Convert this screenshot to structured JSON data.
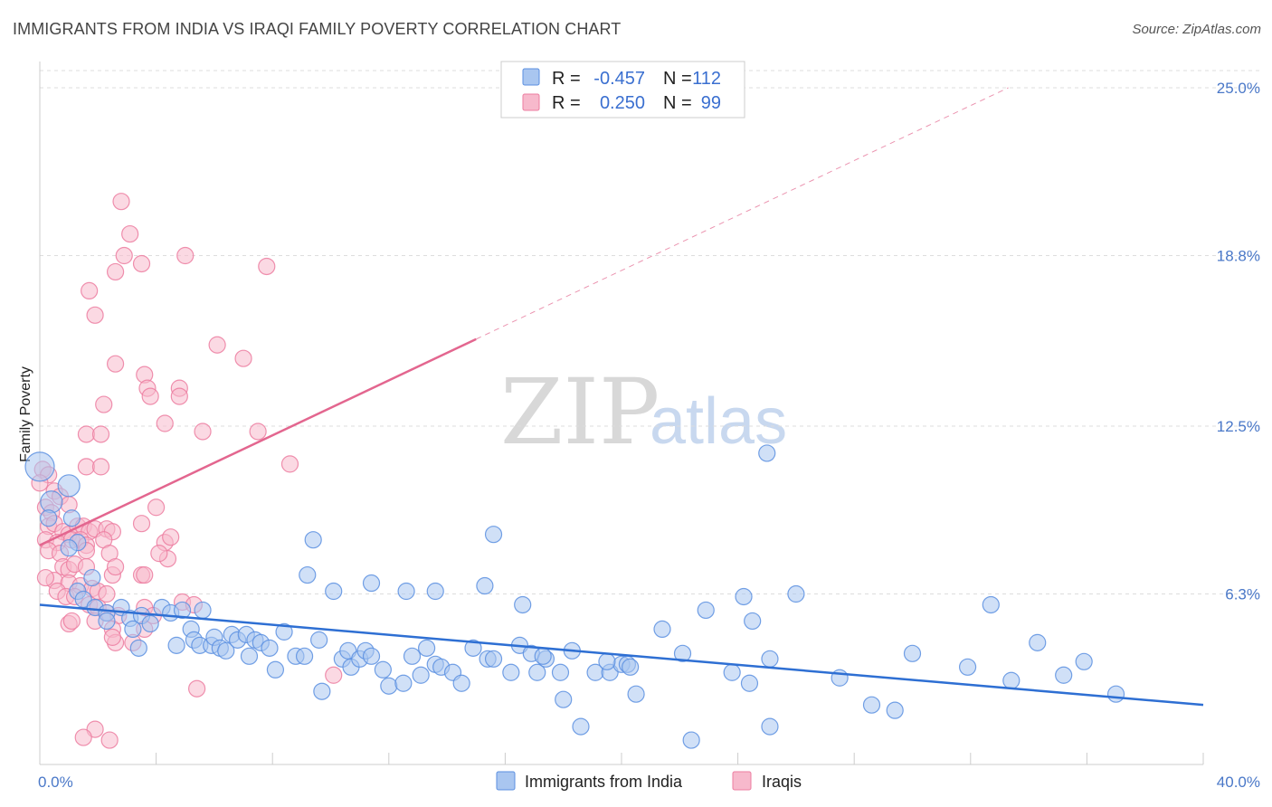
{
  "title": "IMMIGRANTS FROM INDIA VS IRAQI FAMILY POVERTY CORRELATION CHART",
  "source": "Source: ZipAtlas.com",
  "watermark": {
    "zip": "ZIP",
    "atlas": "atlas"
  },
  "colors": {
    "blue": "#5b8fe0",
    "blue_fill": "#a9c6f0",
    "blue_line": "#2e6fd3",
    "pink": "#ec7da0",
    "pink_fill": "#f7b9cc",
    "pink_line": "#e3668f",
    "axis_tick_text": "#4a78c8",
    "grid": "#dddddd"
  },
  "legend": {
    "rows": [
      {
        "r_label": "R =",
        "r_value": "-0.457",
        "n_label": "N =",
        "n_value": "112",
        "series": "blue"
      },
      {
        "r_label": "R =",
        "r_value": "0.250",
        "n_label": "N =",
        "n_value": "99",
        "series": "pink"
      }
    ]
  },
  "bottom_legend": [
    {
      "label": "Immigrants from India",
      "series": "blue"
    },
    {
      "label": "Iraqis",
      "series": "pink"
    }
  ],
  "chart_data": {
    "type": "scatter",
    "title": "IMMIGRANTS FROM INDIA VS IRAQI FAMILY POVERTY CORRELATION CHART",
    "xlabel": "",
    "ylabel": "Family Poverty",
    "xlim": [
      0,
      40
    ],
    "ylim": [
      0,
      25
    ],
    "x_tick_labels": [
      {
        "value": 0,
        "label": "0.0%"
      },
      {
        "value": 40,
        "label": "40.0%"
      }
    ],
    "y_tick_labels": [
      {
        "value": 6.3,
        "label": "6.3%"
      },
      {
        "value": 12.5,
        "label": "12.5%"
      },
      {
        "value": 18.8,
        "label": "18.8%"
      },
      {
        "value": 25.0,
        "label": "25.0%"
      }
    ],
    "grid": true,
    "series": [
      {
        "name": "Immigrants from India",
        "color": "blue",
        "R": -0.457,
        "N": 112,
        "trend": {
          "x0": 0,
          "y0": 5.9,
          "x1": 40,
          "y1": 2.2,
          "solid_until": 40
        },
        "points": [
          [
            0.0,
            11.0
          ],
          [
            1.0,
            10.3
          ],
          [
            0.4,
            9.7
          ],
          [
            0.3,
            9.1
          ],
          [
            1.1,
            9.1
          ],
          [
            1.3,
            8.2
          ],
          [
            1.0,
            8.0
          ],
          [
            1.8,
            6.9
          ],
          [
            1.3,
            6.4
          ],
          [
            1.5,
            6.1
          ],
          [
            1.9,
            5.8
          ],
          [
            2.3,
            5.6
          ],
          [
            2.8,
            5.8
          ],
          [
            2.3,
            5.3
          ],
          [
            3.1,
            5.4
          ],
          [
            3.2,
            5.0
          ],
          [
            3.5,
            5.5
          ],
          [
            3.8,
            5.2
          ],
          [
            4.2,
            5.8
          ],
          [
            4.5,
            5.6
          ],
          [
            4.9,
            5.7
          ],
          [
            5.6,
            5.7
          ],
          [
            3.4,
            4.3
          ],
          [
            4.7,
            4.4
          ],
          [
            5.2,
            5.0
          ],
          [
            5.3,
            4.6
          ],
          [
            5.5,
            4.4
          ],
          [
            5.9,
            4.4
          ],
          [
            6.0,
            4.7
          ],
          [
            6.2,
            4.3
          ],
          [
            6.4,
            4.2
          ],
          [
            6.6,
            4.8
          ],
          [
            6.8,
            4.6
          ],
          [
            7.1,
            4.8
          ],
          [
            7.2,
            4.0
          ],
          [
            7.4,
            4.6
          ],
          [
            7.6,
            4.5
          ],
          [
            7.9,
            4.3
          ],
          [
            8.1,
            3.5
          ],
          [
            8.4,
            4.9
          ],
          [
            8.8,
            4.0
          ],
          [
            9.1,
            4.0
          ],
          [
            9.6,
            4.6
          ],
          [
            9.7,
            2.7
          ],
          [
            10.4,
            3.9
          ],
          [
            10.6,
            4.2
          ],
          [
            10.7,
            3.6
          ],
          [
            11.0,
            3.9
          ],
          [
            11.2,
            4.2
          ],
          [
            11.4,
            4.0
          ],
          [
            11.8,
            3.5
          ],
          [
            12.0,
            2.9
          ],
          [
            12.5,
            3.0
          ],
          [
            12.8,
            4.0
          ],
          [
            13.1,
            3.3
          ],
          [
            13.3,
            4.3
          ],
          [
            13.6,
            3.7
          ],
          [
            13.8,
            3.6
          ],
          [
            14.2,
            3.4
          ],
          [
            14.5,
            3.0
          ],
          [
            14.9,
            4.3
          ],
          [
            15.4,
            3.9
          ],
          [
            15.6,
            3.9
          ],
          [
            16.2,
            3.4
          ],
          [
            16.5,
            4.4
          ],
          [
            16.9,
            4.1
          ],
          [
            17.1,
            3.4
          ],
          [
            17.4,
            3.9
          ],
          [
            17.9,
            3.4
          ],
          [
            18.0,
            2.4
          ],
          [
            18.6,
            1.4
          ],
          [
            19.1,
            3.4
          ],
          [
            19.6,
            3.4
          ],
          [
            20.0,
            3.7
          ],
          [
            20.2,
            3.7
          ],
          [
            20.5,
            2.6
          ],
          [
            21.4,
            5.0
          ],
          [
            22.1,
            4.1
          ],
          [
            22.4,
            0.9
          ],
          [
            22.9,
            5.7
          ],
          [
            23.8,
            3.4
          ],
          [
            24.2,
            6.2
          ],
          [
            24.5,
            5.3
          ],
          [
            24.4,
            3.0
          ],
          [
            25.1,
            3.9
          ],
          [
            25.1,
            1.4
          ],
          [
            26.0,
            6.3
          ],
          [
            27.5,
            3.2
          ],
          [
            28.6,
            2.2
          ],
          [
            29.4,
            2.0
          ],
          [
            30.0,
            4.1
          ],
          [
            31.9,
            3.6
          ],
          [
            32.7,
            5.9
          ],
          [
            33.4,
            3.1
          ],
          [
            34.3,
            4.5
          ],
          [
            35.2,
            3.3
          ],
          [
            35.9,
            3.8
          ],
          [
            37.0,
            2.6
          ],
          [
            9.4,
            8.3
          ],
          [
            15.6,
            8.5
          ],
          [
            25.0,
            11.5
          ],
          [
            9.2,
            7.0
          ],
          [
            10.1,
            6.4
          ],
          [
            11.4,
            6.7
          ],
          [
            12.6,
            6.4
          ],
          [
            13.6,
            6.4
          ],
          [
            15.3,
            6.6
          ],
          [
            16.6,
            5.9
          ],
          [
            17.3,
            4.0
          ],
          [
            18.3,
            4.2
          ],
          [
            19.5,
            3.8
          ],
          [
            20.3,
            3.6
          ]
        ]
      },
      {
        "name": "Iraqis",
        "color": "pink",
        "R": 0.25,
        "N": 99,
        "trend": {
          "x0": 0,
          "y0": 8.1,
          "x1": 33.3,
          "y1": 25.0,
          "solid_until": 15.0
        },
        "points": [
          [
            2.8,
            20.8
          ],
          [
            3.1,
            19.6
          ],
          [
            2.9,
            18.8
          ],
          [
            5.0,
            18.8
          ],
          [
            3.5,
            18.5
          ],
          [
            7.8,
            18.4
          ],
          [
            2.6,
            18.2
          ],
          [
            1.7,
            17.5
          ],
          [
            1.9,
            16.6
          ],
          [
            6.1,
            15.5
          ],
          [
            7.0,
            15.0
          ],
          [
            2.6,
            14.8
          ],
          [
            3.6,
            14.4
          ],
          [
            3.7,
            13.9
          ],
          [
            4.8,
            13.9
          ],
          [
            4.8,
            13.6
          ],
          [
            3.8,
            13.6
          ],
          [
            2.2,
            13.3
          ],
          [
            4.3,
            12.6
          ],
          [
            5.6,
            12.3
          ],
          [
            7.5,
            12.3
          ],
          [
            1.6,
            12.2
          ],
          [
            2.1,
            12.2
          ],
          [
            8.6,
            11.1
          ],
          [
            1.6,
            11.0
          ],
          [
            2.1,
            11.0
          ],
          [
            0.1,
            10.9
          ],
          [
            0.3,
            10.7
          ],
          [
            0.0,
            10.4
          ],
          [
            0.5,
            10.1
          ],
          [
            0.7,
            9.9
          ],
          [
            0.2,
            9.5
          ],
          [
            1.0,
            9.6
          ],
          [
            0.4,
            9.3
          ],
          [
            0.3,
            8.8
          ],
          [
            0.5,
            8.9
          ],
          [
            0.8,
            8.6
          ],
          [
            1.0,
            8.5
          ],
          [
            1.3,
            8.8
          ],
          [
            1.5,
            8.8
          ],
          [
            1.7,
            8.6
          ],
          [
            1.9,
            8.7
          ],
          [
            2.3,
            8.7
          ],
          [
            2.5,
            8.6
          ],
          [
            3.5,
            8.9
          ],
          [
            4.0,
            9.5
          ],
          [
            0.2,
            8.3
          ],
          [
            0.6,
            8.2
          ],
          [
            1.1,
            8.3
          ],
          [
            1.4,
            8.3
          ],
          [
            1.6,
            8.1
          ],
          [
            2.2,
            8.3
          ],
          [
            4.3,
            8.2
          ],
          [
            4.5,
            8.4
          ],
          [
            0.3,
            7.9
          ],
          [
            0.7,
            7.8
          ],
          [
            1.6,
            7.9
          ],
          [
            2.4,
            7.8
          ],
          [
            4.4,
            7.6
          ],
          [
            0.8,
            7.3
          ],
          [
            1.0,
            7.2
          ],
          [
            1.2,
            7.4
          ],
          [
            1.6,
            7.3
          ],
          [
            2.5,
            7.0
          ],
          [
            2.6,
            7.3
          ],
          [
            3.5,
            7.0
          ],
          [
            3.6,
            7.0
          ],
          [
            0.5,
            6.8
          ],
          [
            1.0,
            6.7
          ],
          [
            1.4,
            6.6
          ],
          [
            1.8,
            6.5
          ],
          [
            2.0,
            6.4
          ],
          [
            2.3,
            6.3
          ],
          [
            0.6,
            6.4
          ],
          [
            0.9,
            6.2
          ],
          [
            1.2,
            6.2
          ],
          [
            1.7,
            5.9
          ],
          [
            2.0,
            5.8
          ],
          [
            2.3,
            5.6
          ],
          [
            2.7,
            5.5
          ],
          [
            3.6,
            5.8
          ],
          [
            3.9,
            5.5
          ],
          [
            4.9,
            6.0
          ],
          [
            5.3,
            5.9
          ],
          [
            1.0,
            5.2
          ],
          [
            1.1,
            5.3
          ],
          [
            1.9,
            5.3
          ],
          [
            2.5,
            5.0
          ],
          [
            2.6,
            4.5
          ],
          [
            3.2,
            4.5
          ],
          [
            2.5,
            4.7
          ],
          [
            10.1,
            3.3
          ],
          [
            5.4,
            2.8
          ],
          [
            1.9,
            1.3
          ],
          [
            1.5,
            1.0
          ],
          [
            2.4,
            0.9
          ],
          [
            3.6,
            5.0
          ],
          [
            0.2,
            6.9
          ],
          [
            4.1,
            7.8
          ]
        ]
      }
    ]
  }
}
